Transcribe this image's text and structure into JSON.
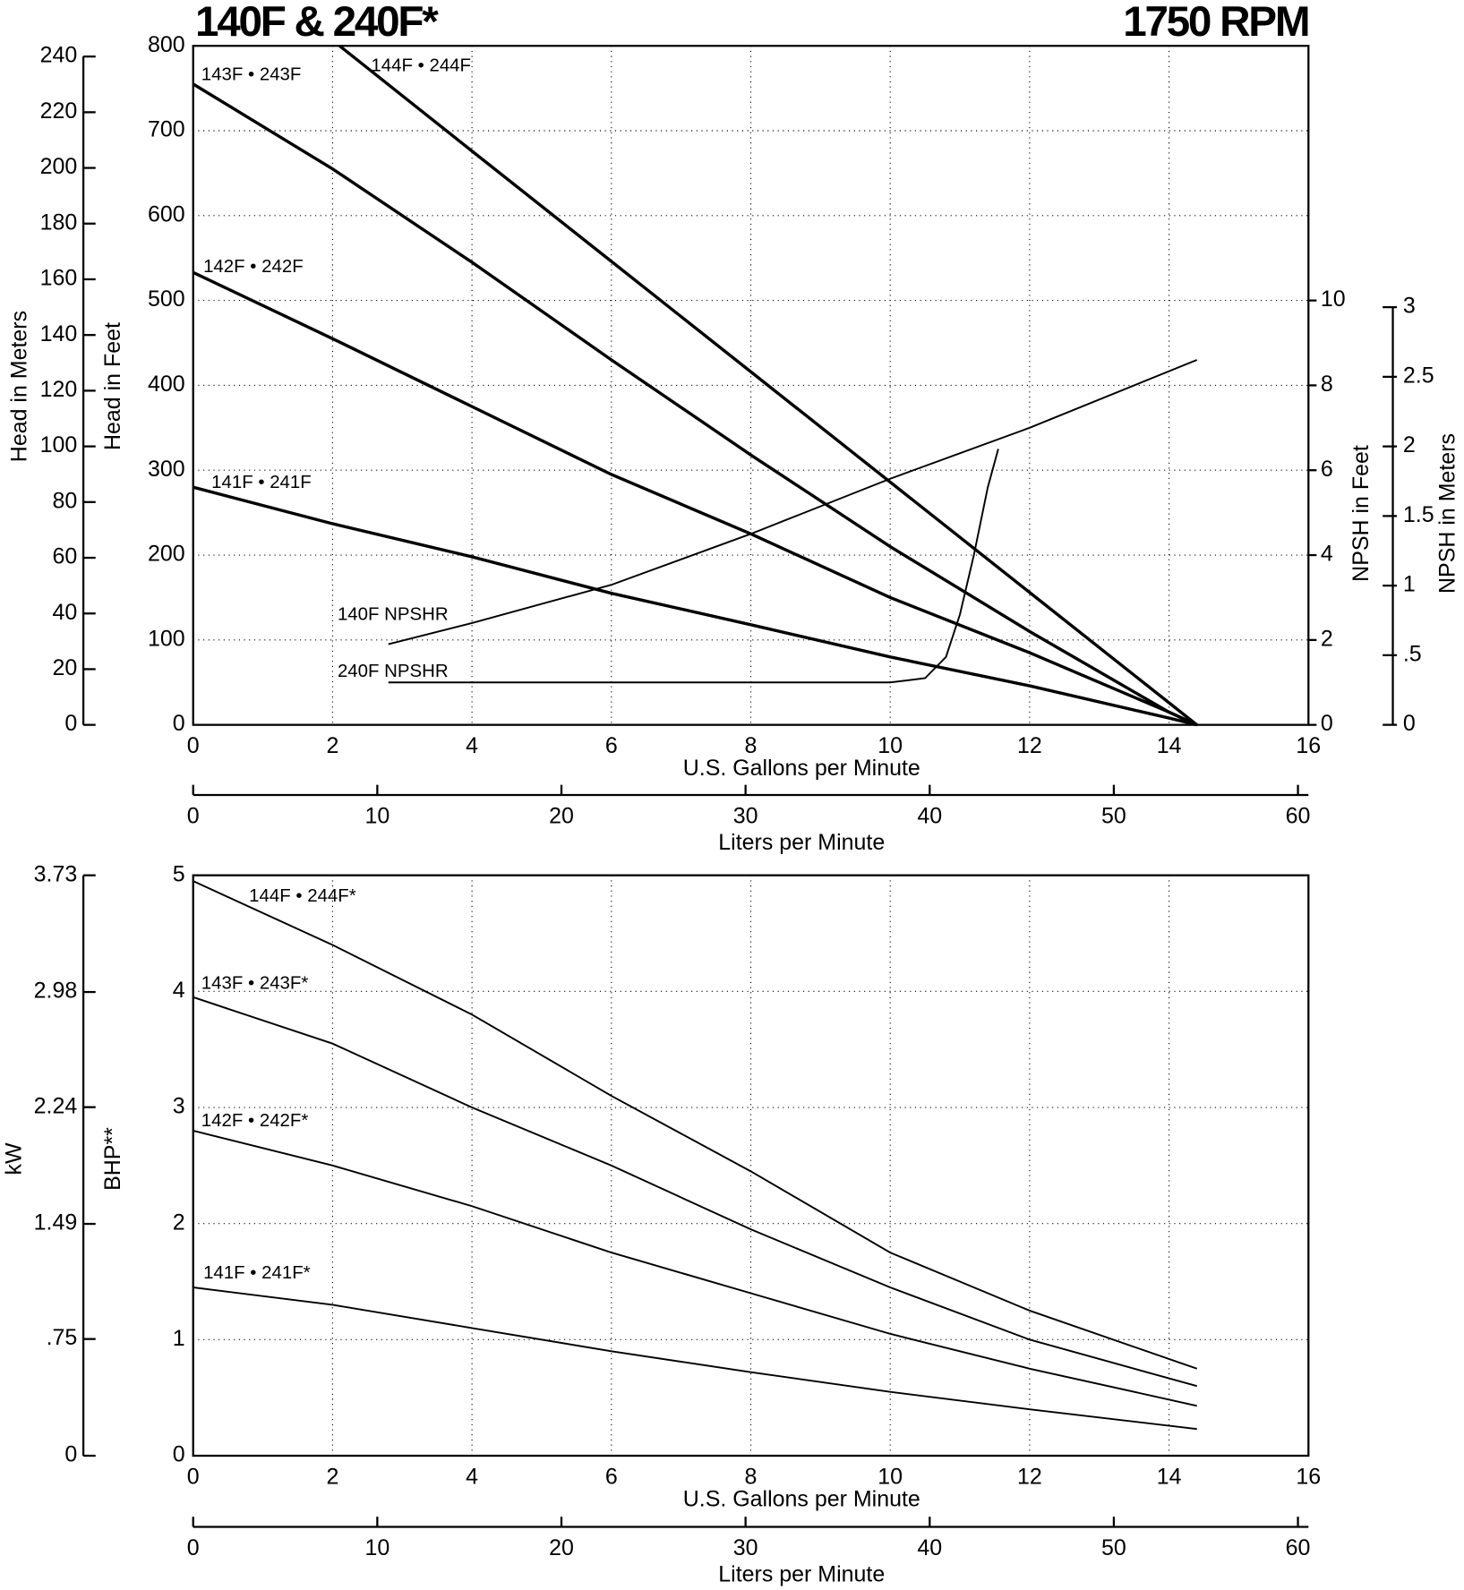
{
  "chart_data": [
    {
      "type": "line",
      "title": "140F & 240F*",
      "subtitle": "1750 RPM",
      "x_label": "U.S. Gallons per Minute",
      "y_label": "Head in Feet",
      "xlim": [
        0,
        16
      ],
      "xticks": [
        0,
        2,
        4,
        6,
        8,
        10,
        12,
        14,
        16
      ],
      "ylim": [
        0,
        800
      ],
      "yticks": [
        0,
        100,
        200,
        300,
        400,
        500,
        600,
        700,
        800
      ],
      "grid": true,
      "y_outer": {
        "label": "Head in Meters",
        "lim": [
          0,
          243.84
        ],
        "ticks": [
          0,
          20,
          40,
          60,
          80,
          100,
          120,
          140,
          160,
          180,
          200,
          220,
          240
        ]
      },
      "y2_label": "NPSH in Feet",
      "y2lim": [
        0,
        16
      ],
      "y2ticks": [
        0,
        2,
        4,
        6,
        8,
        10
      ],
      "y2_outer": {
        "label": "NPSH in Meters",
        "lim": [
          0,
          4.877
        ],
        "ticks": [
          0,
          {
            "value": 0.5,
            "label": ".5"
          },
          1,
          1.5,
          2,
          2.5,
          3
        ]
      },
      "x2": {
        "label": "Liters per Minute",
        "lim": [
          0,
          60.57
        ],
        "ticks": [
          0,
          10,
          20,
          30,
          40,
          50,
          60
        ]
      },
      "series": [
        {
          "name": "144F • 244F",
          "color": "#000000",
          "x": [
            2.1,
            4,
            6,
            8,
            10,
            12,
            14,
            14.4
          ],
          "values": [
            800,
            676,
            546,
            416,
            286,
            156,
            26,
            0
          ]
        },
        {
          "name": "143F • 243F",
          "color": "#000000",
          "x": [
            0,
            2,
            4,
            6,
            8,
            10,
            12,
            14,
            14.4
          ],
          "values": [
            755,
            655,
            545,
            430,
            318,
            210,
            110,
            15,
            0
          ]
        },
        {
          "name": "142F • 242F",
          "color": "#000000",
          "x": [
            0,
            2,
            4,
            6,
            8,
            10,
            12,
            14,
            14.4
          ],
          "values": [
            533,
            455,
            375,
            295,
            225,
            150,
            85,
            15,
            0
          ]
        },
        {
          "name": "141F • 241F",
          "color": "#000000",
          "x": [
            0,
            2,
            4,
            6,
            8,
            10,
            12,
            14,
            14.4
          ],
          "values": [
            280,
            237,
            198,
            155,
            118,
            80,
            46,
            8,
            0
          ]
        },
        {
          "name": "140F NPSHR",
          "color": "#000000",
          "axis": "y2",
          "x": [
            2.8,
            4,
            6,
            8,
            10,
            12,
            14.4
          ],
          "values": [
            1.9,
            2.4,
            3.3,
            4.5,
            5.8,
            7.0,
            8.6
          ]
        },
        {
          "name": "240F NPSHR",
          "color": "#000000",
          "axis": "y2",
          "x": [
            2.8,
            10,
            10.5,
            10.8,
            11.0,
            11.2,
            11.4,
            11.55
          ],
          "values": [
            1.0,
            1.0,
            1.1,
            1.6,
            2.6,
            4.0,
            5.6,
            6.5
          ]
        }
      ]
    },
    {
      "type": "line",
      "x_label": "U.S. Gallons per Minute",
      "y_label": "BHP**",
      "xlim": [
        0,
        16
      ],
      "xticks": [
        0,
        2,
        4,
        6,
        8,
        10,
        12,
        14,
        16
      ],
      "ylim": [
        0,
        5
      ],
      "yticks": [
        0,
        1,
        2,
        3,
        4,
        5
      ],
      "grid": true,
      "y_outer": {
        "label": "kW",
        "lim": [
          0,
          3.73
        ],
        "ticks": [
          0,
          {
            "value": 0.75,
            "label": ".75"
          },
          1.49,
          2.24,
          2.98,
          3.73
        ]
      },
      "x2": {
        "label": "Liters per Minute",
        "lim": [
          0,
          60.57
        ],
        "ticks": [
          0,
          10,
          20,
          30,
          40,
          50,
          60
        ]
      },
      "series": [
        {
          "name": "144F • 244F*",
          "color": "#000000",
          "x": [
            0,
            2,
            4,
            6,
            8,
            10,
            12,
            14.4
          ],
          "values": [
            4.95,
            4.4,
            3.8,
            3.1,
            2.45,
            1.75,
            1.25,
            0.75
          ]
        },
        {
          "name": "143F • 243F*",
          "color": "#000000",
          "x": [
            0,
            2,
            4,
            6,
            8,
            10,
            12,
            14.4
          ],
          "values": [
            3.95,
            3.55,
            3.0,
            2.5,
            1.95,
            1.45,
            1.0,
            0.6
          ]
        },
        {
          "name": "142F • 242F*",
          "color": "#000000",
          "x": [
            0,
            2,
            4,
            6,
            8,
            10,
            12,
            14.4
          ],
          "values": [
            2.8,
            2.5,
            2.15,
            1.75,
            1.4,
            1.05,
            0.75,
            0.43
          ]
        },
        {
          "name": "141F • 241F*",
          "color": "#000000",
          "x": [
            0,
            2,
            4,
            6,
            8,
            10,
            12,
            14.4
          ],
          "values": [
            1.45,
            1.3,
            1.1,
            0.9,
            0.72,
            0.55,
            0.4,
            0.23
          ]
        }
      ]
    }
  ]
}
